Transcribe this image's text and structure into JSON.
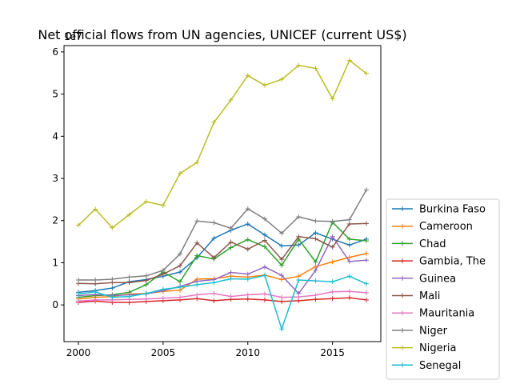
{
  "chart_data": {
    "type": "line",
    "title": "Net official flows from UN agencies, UNICEF (current US$)",
    "offset_label": "1e7",
    "xlabel": "",
    "ylabel": "",
    "xlim": [
      1999.15,
      2017.85
    ],
    "ylim": [
      -0.87,
      6.15
    ],
    "x_ticks": [
      2000,
      2005,
      2010,
      2015
    ],
    "y_ticks": [
      0,
      1,
      2,
      3,
      4,
      5,
      6
    ],
    "legend_position": "lower-right-outside",
    "grid": false,
    "x": [
      2000,
      2001,
      2002,
      2003,
      2004,
      2005,
      2006,
      2007,
      2008,
      2009,
      2010,
      2011,
      2012,
      2013,
      2014,
      2015,
      2016,
      2017
    ],
    "series": [
      {
        "name": "Burkina Faso",
        "color": "#1f77b4",
        "values": [
          0.3,
          0.34,
          0.4,
          0.55,
          0.6,
          0.68,
          0.78,
          1.12,
          1.58,
          1.77,
          1.92,
          1.66,
          1.4,
          1.42,
          1.71,
          1.56,
          1.42,
          1.56
        ]
      },
      {
        "name": "Cameroon",
        "color": "#ff7f0e",
        "values": [
          0.14,
          0.18,
          0.2,
          0.26,
          0.27,
          0.32,
          0.35,
          0.61,
          0.62,
          0.68,
          0.66,
          0.71,
          0.6,
          0.68,
          0.91,
          1.02,
          1.13,
          1.22
        ]
      },
      {
        "name": "Chad",
        "color": "#2ca02c",
        "values": [
          0.18,
          0.22,
          0.24,
          0.3,
          0.48,
          0.78,
          0.55,
          1.17,
          1.09,
          1.36,
          1.55,
          1.38,
          0.94,
          1.56,
          1.02,
          1.96,
          1.56,
          1.52
        ]
      },
      {
        "name": "Gambia, The",
        "color": "#d62728",
        "values": [
          0.06,
          0.09,
          0.06,
          0.06,
          0.08,
          0.1,
          0.12,
          0.15,
          0.1,
          0.13,
          0.14,
          0.12,
          0.08,
          0.1,
          0.13,
          0.15,
          0.17,
          0.12
        ]
      },
      {
        "name": "Guinea",
        "color": "#9467bd",
        "values": [
          0.22,
          0.25,
          0.22,
          0.24,
          0.26,
          0.34,
          0.44,
          0.56,
          0.6,
          0.77,
          0.73,
          0.9,
          0.7,
          0.27,
          0.82,
          1.62,
          1.03,
          1.06
        ]
      },
      {
        "name": "Mali",
        "color": "#8c564b",
        "values": [
          0.51,
          0.5,
          0.53,
          0.53,
          0.58,
          0.73,
          0.93,
          1.47,
          1.12,
          1.49,
          1.32,
          1.53,
          1.08,
          1.62,
          1.57,
          1.37,
          1.92,
          1.93
        ]
      },
      {
        "name": "Mauritania",
        "color": "#e377c2",
        "values": [
          0.09,
          0.12,
          0.12,
          0.13,
          0.14,
          0.16,
          0.18,
          0.24,
          0.27,
          0.2,
          0.24,
          0.26,
          0.18,
          0.19,
          0.23,
          0.31,
          0.32,
          0.29
        ]
      },
      {
        "name": "Niger",
        "color": "#7f7f7f",
        "values": [
          0.59,
          0.59,
          0.61,
          0.66,
          0.69,
          0.82,
          1.21,
          1.99,
          1.95,
          1.82,
          2.28,
          2.04,
          1.7,
          2.09,
          1.99,
          1.98,
          2.02,
          2.73
        ]
      },
      {
        "name": "Nigeria",
        "color": "#bcbd22",
        "values": [
          1.89,
          2.27,
          1.83,
          2.14,
          2.45,
          2.36,
          3.12,
          3.38,
          4.33,
          4.86,
          5.44,
          5.21,
          5.35,
          5.68,
          5.61,
          4.89,
          5.8,
          5.49
        ]
      },
      {
        "name": "Senegal",
        "color": "#17becf",
        "values": [
          0.26,
          0.31,
          0.18,
          0.2,
          0.27,
          0.37,
          0.42,
          0.48,
          0.53,
          0.62,
          0.61,
          0.7,
          -0.57,
          0.59,
          0.57,
          0.55,
          0.68,
          0.5
        ]
      }
    ]
  }
}
